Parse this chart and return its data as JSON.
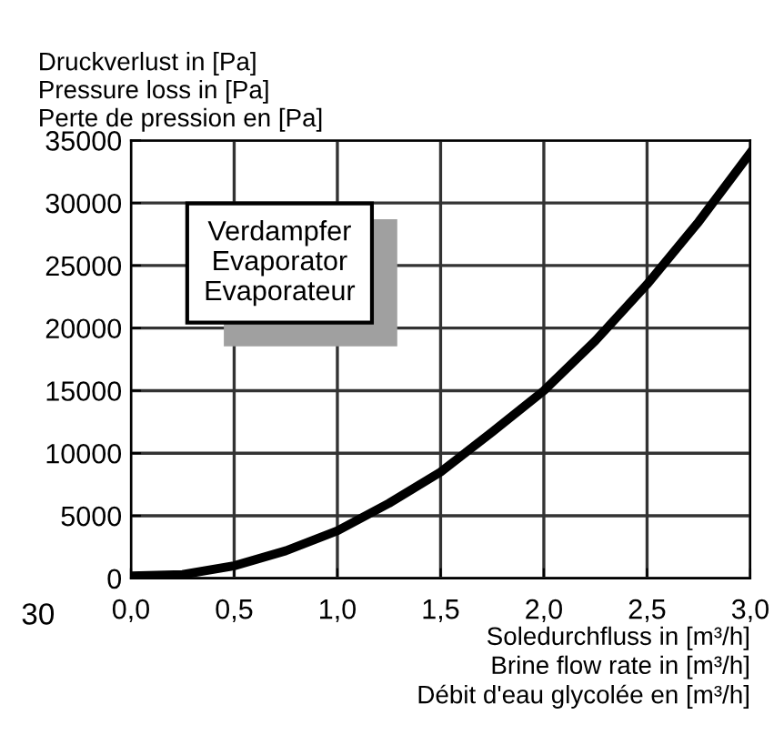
{
  "chart_data": {
    "type": "line",
    "ylabel": "Druckverlust in [Pa]\nPressure loss in [Pa]\nPerte de pression en [Pa]",
    "xlabel": "Soledurchfluss in [m³/h]\nBrine flow rate in [m³/h]\nDébit d'eau glycolée en [m³/h]",
    "x": [
      0,
      0.25,
      0.5,
      0.75,
      1.0,
      1.25,
      1.5,
      1.75,
      2.0,
      2.25,
      2.5,
      2.75,
      3.0
    ],
    "series": [
      {
        "color": "#000000",
        "values": [
          200,
          300,
          1000,
          2200,
          3800,
          6000,
          8500,
          11700,
          15000,
          19000,
          23500,
          28500,
          34000
        ]
      }
    ],
    "xlim": [
      0,
      3.0
    ],
    "xticks": [
      {
        "value": 0,
        "label": "0,0"
      },
      {
        "value": 0.5,
        "label": "0,5"
      },
      {
        "value": 1.0,
        "label": "1,0"
      },
      {
        "value": 1.5,
        "label": "1,5"
      },
      {
        "value": 2.0,
        "label": "2,0"
      },
      {
        "value": 2.5,
        "label": "2,5"
      },
      {
        "value": 3.0,
        "label": "3,0"
      }
    ],
    "ylim": [
      0,
      35000
    ],
    "yticks": [
      0,
      5000,
      10000,
      15000,
      20000,
      25000,
      30000,
      35000
    ],
    "grid": true,
    "legend": false,
    "marker": "none",
    "line_style": "solid",
    "annotations": [
      "Verdampfer\nEvaporator\nEvaporateur",
      "30"
    ]
  }
}
